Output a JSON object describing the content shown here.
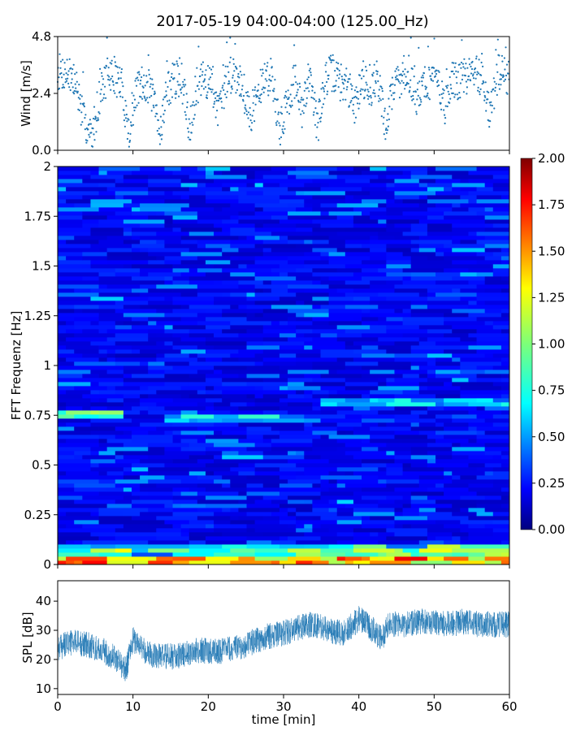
{
  "title": "2017-05-19 04:00-04:00 (125.00_Hz)",
  "colors": {
    "wind": "#1f77b4",
    "spl": "#1f77b4"
  },
  "chart_data": [
    {
      "type": "scatter",
      "name": "wind",
      "ylabel": "Wind [m/s]",
      "xlim": [
        0,
        60
      ],
      "ylim": [
        0,
        4.8
      ],
      "yticks": [
        "0.0",
        "2.4",
        "4.8"
      ],
      "grid": false,
      "x": [
        0.5,
        1.5,
        2.5,
        3.5,
        4.5,
        5.5,
        6.5,
        7.5,
        8.5,
        9.5,
        10.5,
        11.5,
        12.5,
        13.5,
        14.5,
        15.5,
        16.5,
        17.5,
        18.5,
        19.5,
        20.5,
        21.5,
        22.5,
        23.5,
        24.5,
        25.5,
        26.5,
        27.5,
        28.5,
        29.5,
        30.5,
        31.5,
        32.5,
        33.5,
        34.5,
        35.5,
        36.5,
        37.5,
        38.5,
        39.5,
        40.5,
        41.5,
        42.5,
        43.5,
        44.5,
        45.5,
        46.5,
        47.5,
        48.5,
        49.5,
        50.5,
        51.5,
        52.5,
        53.5,
        54.5,
        55.5,
        56.5,
        57.5,
        58.5,
        59.5
      ],
      "y": [
        3.3,
        3.2,
        2.7,
        1.2,
        0.5,
        2.2,
        3.1,
        3.2,
        2.7,
        0.6,
        2.5,
        2.9,
        2.4,
        0.7,
        2.5,
        3.0,
        2.9,
        1.0,
        2.7,
        3.0,
        2.7,
        1.6,
        3.1,
        3.3,
        2.8,
        1.4,
        2.3,
        3.0,
        3.1,
        0.8,
        2.0,
        3.0,
        1.5,
        3.5,
        0.9,
        3.0,
        3.3,
        2.9,
        2.7,
        1.9,
        3.1,
        2.5,
        3.2,
        1.0,
        2.6,
        3.0,
        3.4,
        2.2,
        2.8,
        2.9,
        3.0,
        1.8,
        3.0,
        2.9,
        3.2,
        3.3,
        3.0,
        1.5,
        3.3,
        3.1
      ]
    },
    {
      "type": "heatmap",
      "name": "spectrogram",
      "ylabel": "FFT Frequenz [Hz]",
      "xlim": [
        0,
        60
      ],
      "ylim": [
        0,
        2
      ],
      "yticks": [
        "0",
        "0.25",
        "0.5",
        "0.75",
        "1",
        "1.25",
        "1.5",
        "1.75",
        "2"
      ],
      "colorbar": {
        "range": [
          0,
          2
        ],
        "ticks": [
          "0.00",
          "0.25",
          "0.50",
          "0.75",
          "1.00",
          "1.25",
          "1.50",
          "1.75",
          "2.00"
        ],
        "colormap": "jet"
      },
      "features": [
        {
          "freq": 0.02,
          "t_start": 0,
          "t_end": 60,
          "level": 1.7
        },
        {
          "freq": 0.05,
          "t_start": 30,
          "t_end": 60,
          "level": 1.2
        },
        {
          "freq": 0.76,
          "t_start": 0,
          "t_end": 8,
          "level": 1.1
        },
        {
          "freq": 0.73,
          "t_start": 15,
          "t_end": 30,
          "level": 0.9
        },
        {
          "freq": 0.82,
          "t_start": 35,
          "t_end": 60,
          "level": 0.8
        }
      ]
    },
    {
      "type": "line",
      "name": "spl",
      "xlabel": "time [min]",
      "ylabel": "SPL [dB]",
      "xlim": [
        0,
        60
      ],
      "ylim": [
        8,
        47
      ],
      "xticks": [
        "0",
        "10",
        "20",
        "30",
        "40",
        "50",
        "60"
      ],
      "yticks": [
        "10",
        "20",
        "30",
        "40"
      ],
      "grid": false,
      "x": [
        0,
        2,
        4,
        6,
        8,
        9,
        10,
        12,
        14,
        16,
        18,
        20,
        22,
        24,
        26,
        28,
        30,
        32,
        34,
        36,
        38,
        40,
        42,
        43,
        44,
        46,
        48,
        50,
        52,
        54,
        56,
        58,
        60
      ],
      "y": [
        24,
        26,
        25,
        23,
        20,
        16,
        27,
        22,
        21,
        21,
        23,
        23,
        23,
        24,
        26,
        28,
        29,
        31,
        32,
        30,
        29,
        34,
        30,
        27,
        32,
        32,
        33,
        33,
        32,
        33,
        32,
        32,
        32
      ]
    }
  ]
}
